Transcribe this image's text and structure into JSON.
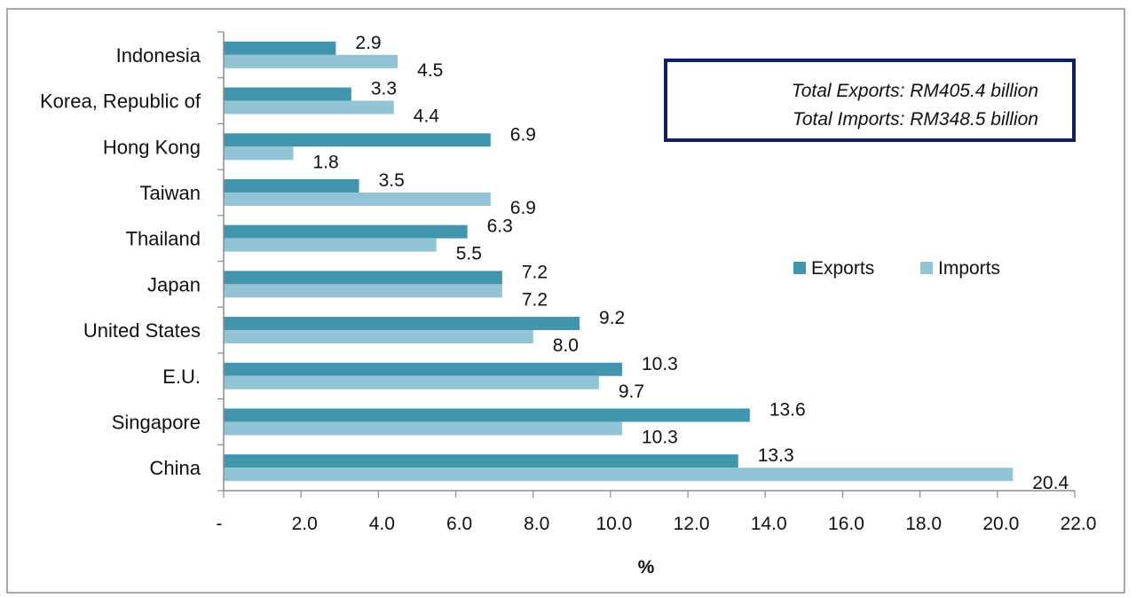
{
  "chart_data": {
    "type": "bar",
    "orientation": "horizontal",
    "title": "",
    "xlabel": "%",
    "ylabel": "",
    "xlim": [
      0,
      22
    ],
    "x_ticks": [
      0,
      2,
      4,
      6,
      8,
      10,
      12,
      14,
      16,
      18,
      20,
      22
    ],
    "x_tick_labels": [
      "-",
      "2.0",
      "4.0",
      "6.0",
      "8.0",
      "10.0",
      "12.0",
      "14.0",
      "16.0",
      "18.0",
      "20.0",
      "22.0"
    ],
    "grid": false,
    "categories": [
      "Indonesia",
      "Korea, Republic of",
      "Hong Kong",
      "Taiwan",
      "Thailand",
      "Japan",
      "United States",
      "E.U.",
      "Singapore",
      "China"
    ],
    "series": [
      {
        "name": "Exports",
        "color": "#4196ad",
        "values": [
          2.9,
          3.3,
          6.9,
          3.5,
          6.3,
          7.2,
          9.2,
          10.3,
          13.6,
          13.3
        ],
        "labels": [
          "2.9",
          "3.3",
          "6.9",
          "3.5",
          "6.3",
          "7.2",
          "9.2",
          "10.3",
          "13.6",
          "13.3"
        ]
      },
      {
        "name": "Imports",
        "color": "#92c4d6",
        "values": [
          4.5,
          4.4,
          1.8,
          6.9,
          5.5,
          7.2,
          8.0,
          9.7,
          10.3,
          20.4
        ],
        "labels": [
          "4.5",
          "4.4",
          "1.8",
          "6.9",
          "5.5",
          "7.2",
          "8.0",
          "9.7",
          "10.3",
          "20.4"
        ]
      }
    ],
    "legend": {
      "placement": "right-middle",
      "entries": [
        "Exports",
        "Imports"
      ]
    },
    "annotation": {
      "lines": [
        "Total Exports: RM405.4 billion",
        "Total Imports: RM348.5 billion"
      ],
      "border_color": "#0d2160",
      "placement": "top-right"
    }
  }
}
